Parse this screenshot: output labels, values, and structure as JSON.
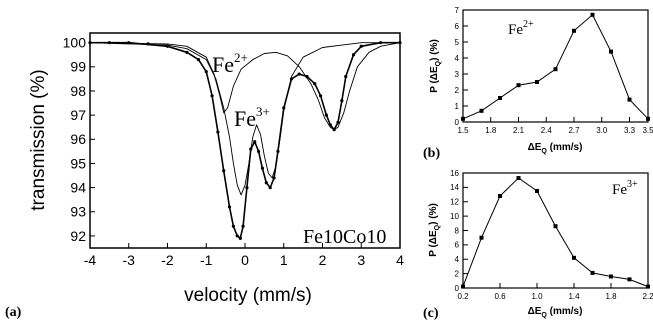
{
  "chart_data": [
    {
      "panel": "(a)",
      "type": "scatter",
      "xlabel": "velocity  (mm/s)",
      "ylabel": "transmission  (%)",
      "xlim": [
        -4,
        4
      ],
      "ylim": [
        91.5,
        100.4
      ],
      "xticks": [
        "-4",
        "-3",
        "-2",
        "-1",
        "0",
        "1",
        "2",
        "3",
        "4"
      ],
      "yticks": [
        "92",
        "93",
        "94",
        "95",
        "96",
        "97",
        "98",
        "99",
        "100"
      ],
      "annotations": {
        "fe2": "Fe",
        "fe2_sup": "2+",
        "fe3": "Fe",
        "fe3_sup": "3+",
        "sample": "Fe10Co10"
      },
      "series": [
        {
          "kind": "data points",
          "x": [
            -4.0,
            -3.5,
            -3.0,
            -2.5,
            -2.0,
            -1.5,
            -1.2,
            -1.0,
            -0.85,
            -0.7,
            -0.55,
            -0.4,
            -0.3,
            -0.2,
            -0.12,
            -0.05,
            0.05,
            0.15,
            0.25,
            0.35,
            0.45,
            0.55,
            0.65,
            0.75,
            0.85,
            1.0,
            1.2,
            1.4,
            1.6,
            1.8,
            1.95,
            2.1,
            2.2,
            2.3,
            2.4,
            2.5,
            2.6,
            2.8,
            3.0,
            3.5,
            4.0
          ],
          "y": [
            100.0,
            100.0,
            100.0,
            99.95,
            99.85,
            99.6,
            99.3,
            98.8,
            97.8,
            96.3,
            94.7,
            93.2,
            92.4,
            92.0,
            91.9,
            92.4,
            94.0,
            95.6,
            95.9,
            95.5,
            94.8,
            94.2,
            94.0,
            94.4,
            95.5,
            97.3,
            98.5,
            98.7,
            98.6,
            98.3,
            97.8,
            97.0,
            96.6,
            96.4,
            96.7,
            97.6,
            98.6,
            99.5,
            99.85,
            100.0,
            100.0
          ]
        },
        {
          "kind": "fit total",
          "x": [
            -4.0,
            -3.0,
            -2.0,
            -1.5,
            -1.2,
            -1.0,
            -0.85,
            -0.7,
            -0.55,
            -0.4,
            -0.3,
            -0.2,
            -0.12,
            -0.05,
            0.05,
            0.15,
            0.25,
            0.35,
            0.45,
            0.55,
            0.65,
            0.75,
            0.85,
            1.0,
            1.2,
            1.4,
            1.6,
            1.8,
            1.95,
            2.1,
            2.2,
            2.3,
            2.4,
            2.5,
            2.6,
            2.8,
            3.0,
            3.5,
            4.0
          ],
          "y": [
            100.0,
            100.0,
            99.85,
            99.6,
            99.3,
            98.8,
            97.8,
            96.3,
            94.7,
            93.2,
            92.4,
            92.0,
            91.9,
            92.4,
            94.0,
            95.6,
            95.9,
            95.5,
            94.8,
            94.2,
            94.0,
            94.4,
            95.5,
            97.3,
            98.5,
            98.7,
            98.6,
            98.3,
            97.8,
            97.0,
            96.6,
            96.4,
            96.7,
            97.6,
            98.6,
            99.5,
            99.85,
            100.0,
            100.0
          ]
        },
        {
          "kind": "Fe2+ component",
          "x": [
            -4.0,
            -2.0,
            -1.5,
            -1.0,
            -0.8,
            -0.65,
            -0.55,
            -0.45,
            -0.3,
            -0.1,
            0.2,
            0.5,
            0.8,
            1.1,
            1.4,
            1.7,
            1.9,
            2.05,
            2.2,
            2.3,
            2.4,
            2.55,
            2.7,
            2.9,
            3.2,
            3.5,
            4.0
          ],
          "y": [
            100.0,
            99.95,
            99.85,
            99.4,
            98.7,
            97.8,
            97.1,
            97.3,
            98.2,
            98.9,
            99.3,
            99.55,
            99.6,
            99.45,
            99.0,
            98.3,
            97.6,
            96.9,
            96.5,
            96.4,
            96.5,
            97.1,
            98.0,
            99.0,
            99.6,
            99.85,
            100.0
          ]
        },
        {
          "kind": "Fe3+ component",
          "x": [
            -4.0,
            -2.0,
            -1.5,
            -1.0,
            -0.75,
            -0.55,
            -0.4,
            -0.3,
            -0.2,
            -0.1,
            0.0,
            0.1,
            0.2,
            0.3,
            0.4,
            0.5,
            0.6,
            0.7,
            0.8,
            0.9,
            1.0,
            1.2,
            1.5,
            2.0,
            2.5,
            3.0,
            4.0
          ],
          "y": [
            100.0,
            99.9,
            99.75,
            99.3,
            98.5,
            97.3,
            96.1,
            95.0,
            94.1,
            93.7,
            94.1,
            95.0,
            96.1,
            96.6,
            96.2,
            95.3,
            94.6,
            94.4,
            94.9,
            96.0,
            97.2,
            98.6,
            99.4,
            99.8,
            99.9,
            100.0,
            100.0
          ]
        }
      ]
    },
    {
      "panel": "(b)",
      "type": "line",
      "xlabel": "ΔE",
      "xlabel_sub": "Q",
      "xlabel_unit": " (mm/s)",
      "ylabel": "P (ΔE",
      "ylabel_sub": "Q",
      "ylabel_unit": ") (%)",
      "xlim": [
        1.5,
        3.5
      ],
      "ylim": [
        0,
        7
      ],
      "xticks": [
        "1.5",
        "1.8",
        "2.1",
        "2.4",
        "2.7",
        "3.0",
        "3.3",
        "3.5"
      ],
      "yticks": [
        "0",
        "1",
        "2",
        "3",
        "4",
        "5",
        "6",
        "7"
      ],
      "annotation": "Fe",
      "annotation_sup": "2+",
      "x": [
        1.5,
        1.7,
        1.9,
        2.1,
        2.3,
        2.5,
        2.7,
        2.9,
        3.1,
        3.3,
        3.5
      ],
      "y": [
        0.2,
        0.7,
        1.5,
        2.3,
        2.5,
        3.3,
        5.7,
        6.7,
        4.4,
        1.4,
        0.2
      ]
    },
    {
      "panel": "(c)",
      "type": "line",
      "xlabel": "ΔE",
      "xlabel_sub": "Q",
      "xlabel_unit": " (mm/s)",
      "ylabel": "P (ΔE",
      "ylabel_sub": "Q",
      "ylabel_unit": ") (%)",
      "xlim": [
        0.2,
        2.2
      ],
      "ylim": [
        0,
        16
      ],
      "xticks": [
        "0.2",
        "0.6",
        "1.0",
        "1.4",
        "1.8",
        "2.2"
      ],
      "yticks": [
        "0",
        "2",
        "4",
        "6",
        "8",
        "10",
        "12",
        "14",
        "16"
      ],
      "annotation": "Fe",
      "annotation_sup": "3+",
      "x": [
        0.2,
        0.4,
        0.6,
        0.8,
        1.0,
        1.2,
        1.4,
        1.6,
        1.8,
        2.0,
        2.2
      ],
      "y": [
        0.2,
        7.0,
        12.8,
        15.3,
        13.5,
        8.6,
        4.2,
        2.1,
        1.6,
        1.2,
        0.2
      ]
    }
  ]
}
